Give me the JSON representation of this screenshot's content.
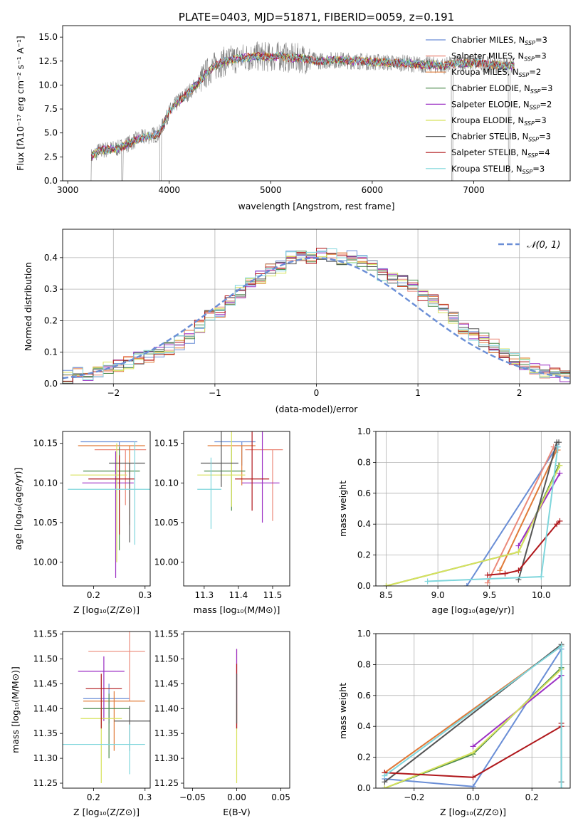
{
  "chart_data": [
    {
      "panel": "spectrum",
      "type": "line",
      "title": "PLATE=0403, MJD=51871, FIBERID=0059, z=0.191",
      "xlabel": "wavelength [Angstrom, rest frame]",
      "ylabel": "Flux [fλ10⁻¹⁷ erg cm⁻² s⁻¹ A⁻¹]",
      "xlim": [
        2950,
        7950
      ],
      "ylim": [
        0,
        16.2
      ],
      "xticks": [
        "3000",
        "4000",
        "5000",
        "6000",
        "7000"
      ],
      "yticks": [
        "0.0",
        "2.5",
        "5.0",
        "7.5",
        "10.0",
        "12.5",
        "15.0"
      ],
      "grid": false,
      "legend_position": "top-right",
      "data_envelope": {
        "x": [
          3230,
          3300,
          3400,
          3500,
          3600,
          3700,
          3800,
          3900,
          4000,
          4100,
          4200,
          4300,
          4400,
          4500,
          4600,
          4700,
          4800,
          4900,
          5000,
          5100,
          5200,
          5300,
          5400,
          5500,
          5600,
          5700,
          5800,
          5900,
          6000,
          6100,
          6200,
          6300,
          6400,
          6500,
          6600,
          6700,
          6800,
          6900,
          7000,
          7100,
          7200,
          7300,
          7400
        ],
        "y": [
          2.5,
          3.1,
          3.3,
          3.4,
          3.9,
          4.4,
          4.7,
          4.9,
          7.2,
          8.4,
          9.3,
          10.4,
          11.6,
          12.3,
          12.6,
          12.8,
          12.9,
          13.0,
          12.9,
          13.0,
          12.8,
          12.8,
          12.6,
          12.5,
          12.6,
          12.6,
          12.5,
          12.5,
          12.4,
          12.4,
          12.3,
          12.3,
          12.2,
          12.1,
          12.1,
          12.0,
          12.2,
          12.3,
          12.3,
          12.2,
          12.1,
          12.0,
          12.0
        ]
      },
      "series": [
        {
          "name": "Chabrier MILES, N",
          "sub": "SSP",
          "suffix": "=3",
          "color": "#6a8ed6"
        },
        {
          "name": "Salpeter MILES, N",
          "sub": "SSP",
          "suffix": "=3",
          "color": "#eb8a7a"
        },
        {
          "name": "Kroupa MILES, N",
          "sub": "SSP",
          "suffix": "=2",
          "color": "#e07b39"
        },
        {
          "name": "Chabrier ELODIE, N",
          "sub": "SSP",
          "suffix": "=3",
          "color": "#4e8c4e"
        },
        {
          "name": "Salpeter ELODIE, N",
          "sub": "SSP",
          "suffix": "=2",
          "color": "#9b2fc4"
        },
        {
          "name": "Kroupa ELODIE, N",
          "sub": "SSP",
          "suffix": "=3",
          "color": "#d7e25c"
        },
        {
          "name": "Chabrier STELIB, N",
          "sub": "SSP",
          "suffix": "=3",
          "color": "#555555"
        },
        {
          "name": "Salpeter STELIB, N",
          "sub": "SSP",
          "suffix": "=4",
          "color": "#b0181c"
        },
        {
          "name": "Kroupa STELIB, N",
          "sub": "SSP",
          "suffix": "=3",
          "color": "#7fd6dc"
        }
      ],
      "data_color": "#808080"
    },
    {
      "panel": "residuals",
      "type": "histogram",
      "xlabel": "(data-model)/error",
      "ylabel": "Normed distribution",
      "xlim": [
        -2.5,
        2.5
      ],
      "ylim": [
        0,
        0.49
      ],
      "xticks": [
        "−2",
        "−1",
        "0",
        "1",
        "2"
      ],
      "yticks": [
        "0.0",
        "0.1",
        "0.2",
        "0.3",
        "0.4"
      ],
      "grid": true,
      "legend": "𝒩(0, 1)",
      "legend_position": "top-right",
      "normal_curve_color": "#6a8ed6",
      "bin_edges": [
        -2.5,
        -2.4,
        -2.3,
        -2.2,
        -2.1,
        -2.0,
        -1.9,
        -1.8,
        -1.7,
        -1.6,
        -1.5,
        -1.4,
        -1.3,
        -1.2,
        -1.1,
        -1.0,
        -0.9,
        -0.8,
        -0.7,
        -0.6,
        -0.5,
        -0.4,
        -0.3,
        -0.2,
        -0.1,
        0.0,
        0.1,
        0.2,
        0.3,
        0.4,
        0.5,
        0.6,
        0.7,
        0.8,
        0.9,
        1.0,
        1.1,
        1.2,
        1.3,
        1.4,
        1.5,
        1.6,
        1.7,
        1.8,
        1.9,
        2.0,
        2.1,
        2.2,
        2.3,
        2.4,
        2.5
      ],
      "hist_centers_approx": [
        0.02,
        0.03,
        0.03,
        0.04,
        0.05,
        0.06,
        0.07,
        0.08,
        0.09,
        0.1,
        0.11,
        0.13,
        0.15,
        0.18,
        0.21,
        0.23,
        0.26,
        0.29,
        0.32,
        0.34,
        0.36,
        0.37,
        0.4,
        0.41,
        0.4,
        0.41,
        0.41,
        0.4,
        0.4,
        0.39,
        0.37,
        0.35,
        0.34,
        0.33,
        0.31,
        0.28,
        0.26,
        0.24,
        0.21,
        0.18,
        0.16,
        0.14,
        0.12,
        0.1,
        0.08,
        0.06,
        0.05,
        0.04,
        0.03,
        0.02
      ],
      "hist_colors": [
        "#6a8ed6",
        "#eb8a7a",
        "#e07b39",
        "#4e8c4e",
        "#9b2fc4",
        "#d7e25c",
        "#555555",
        "#b0181c",
        "#7fd6dc"
      ]
    },
    {
      "panel": "age-vs-Z",
      "type": "errorbar",
      "xlabel": "Z [log₁₀(Z/Z⊙)]",
      "ylabel": "age  [log₁₀(age/yr)]",
      "xlim": [
        0.14,
        0.31
      ],
      "ylim": [
        9.97,
        10.165
      ],
      "xticks": [
        "0.2",
        "0.3"
      ],
      "yticks": [
        "10.00",
        "10.05",
        "10.10",
        "10.15"
      ],
      "points": [
        {
          "x": 0.25,
          "y": 10.152,
          "xerr": [
            0.075,
            0.035
          ],
          "yerr": [
            0.06,
            0.0
          ],
          "color": "#6a8ed6"
        },
        {
          "x": 0.262,
          "y": 10.142,
          "xerr": [
            0.06,
            0.04
          ],
          "yerr": [
            0.07,
            0.0
          ],
          "color": "#eb8a7a"
        },
        {
          "x": 0.27,
          "y": 10.147,
          "xerr": [
            0.1,
            0.03
          ],
          "yerr": [
            0.1,
            0.0
          ],
          "color": "#e07b39"
        },
        {
          "x": 0.25,
          "y": 10.115,
          "xerr": [
            0.07,
            0.04
          ],
          "yerr": [
            0.1,
            0.03
          ],
          "color": "#4e8c4e"
        },
        {
          "x": 0.243,
          "y": 10.1,
          "xerr": [
            0.065,
            0.035
          ],
          "yerr": [
            0.12,
            0.04
          ],
          "color": "#9b2fc4"
        },
        {
          "x": 0.245,
          "y": 10.11,
          "xerr": [
            0.09,
            0.02
          ],
          "yerr": [
            0.11,
            0.04
          ],
          "color": "#d7e25c"
        },
        {
          "x": 0.27,
          "y": 10.125,
          "xerr": [
            0.04,
            0.03
          ],
          "yerr": [
            0.1,
            0.0
          ],
          "color": "#555555"
        },
        {
          "x": 0.25,
          "y": 10.105,
          "xerr": [
            0.06,
            0.03
          ],
          "yerr": [
            0.07,
            0.03
          ],
          "color": "#b0181c"
        },
        {
          "x": 0.28,
          "y": 10.092,
          "xerr": [
            0.13,
            0.03
          ],
          "yerr": [
            0.07,
            0.06
          ],
          "color": "#7fd6dc"
        }
      ]
    },
    {
      "panel": "age-vs-mass",
      "type": "errorbar",
      "xlabel": "mass [log₁₀(M/M⊙)]",
      "xlim": [
        11.24,
        11.55
      ],
      "ylim": [
        9.97,
        10.165
      ],
      "xticks": [
        "11.3",
        "11.4",
        "11.5"
      ],
      "yticks": [
        "10.00",
        "10.05",
        "10.10",
        "10.15"
      ],
      "points": [
        {
          "x": 11.41,
          "y": 10.152,
          "xerr": [
            0.08,
            0.04
          ],
          "yerr": [
            0.03,
            0.0
          ],
          "color": "#6a8ed6"
        },
        {
          "x": 11.5,
          "y": 10.142,
          "xerr": [
            0.08,
            0.03
          ],
          "yerr": [
            0.09,
            0.0
          ],
          "color": "#eb8a7a"
        },
        {
          "x": 11.41,
          "y": 10.147,
          "xerr": [
            0.1,
            0.04
          ],
          "yerr": [
            0.05,
            0.0
          ],
          "color": "#e07b39"
        },
        {
          "x": 11.38,
          "y": 10.115,
          "xerr": [
            0.08,
            0.04
          ],
          "yerr": [
            0.05,
            0.03
          ],
          "color": "#4e8c4e"
        },
        {
          "x": 11.47,
          "y": 10.1,
          "xerr": [
            0.06,
            0.05
          ],
          "yerr": [
            0.05,
            0.12
          ],
          "color": "#9b2fc4"
        },
        {
          "x": 11.38,
          "y": 10.11,
          "xerr": [
            0.1,
            0.04
          ],
          "yerr": [
            0.04,
            0.12
          ],
          "color": "#d7e25c"
        },
        {
          "x": 11.35,
          "y": 10.125,
          "xerr": [
            0.06,
            0.05
          ],
          "yerr": [
            0.03,
            0.06
          ],
          "color": "#555555"
        },
        {
          "x": 11.44,
          "y": 10.105,
          "xerr": [
            0.05,
            0.05
          ],
          "yerr": [
            0.04,
            0.06
          ],
          "color": "#b0181c"
        },
        {
          "x": 11.32,
          "y": 10.092,
          "xerr": [
            0.04,
            0.03
          ],
          "yerr": [
            0.05,
            0.04
          ],
          "color": "#7fd6dc"
        }
      ]
    },
    {
      "panel": "weight-vs-age",
      "type": "line",
      "xlabel": "age  [log₁₀(age/yr)]",
      "ylabel": "mass weight",
      "xlim": [
        8.4,
        10.28
      ],
      "ylim": [
        0,
        1.0
      ],
      "xticks": [
        "8.5",
        "9.0",
        "9.5",
        "10.0"
      ],
      "yticks": [
        "0.0",
        "0.2",
        "0.4",
        "0.6",
        "0.8",
        "1.0"
      ],
      "grid": true,
      "series": [
        {
          "color": "#6a8ed6",
          "x": [
            9.28,
            10.15,
            10.16
          ],
          "y": [
            0.0,
            0.9,
            0.9
          ]
        },
        {
          "color": "#eb8a7a",
          "x": [
            9.48,
            10.12
          ],
          "y": [
            0.02,
            0.9
          ]
        },
        {
          "color": "#e07b39",
          "x": [
            9.6,
            10.15,
            10.16
          ],
          "y": [
            0.1,
            0.88,
            0.88
          ]
        },
        {
          "color": "#4e8c4e",
          "x": [
            8.5,
            9.78,
            10.17
          ],
          "y": [
            0.0,
            0.22,
            0.78
          ]
        },
        {
          "color": "#9b2fc4",
          "x": [
            9.78,
            10.18
          ],
          "y": [
            0.26,
            0.73
          ]
        },
        {
          "color": "#d7e25c",
          "x": [
            8.5,
            9.78,
            10.18
          ],
          "y": [
            0.0,
            0.22,
            0.78
          ]
        },
        {
          "color": "#555555",
          "x": [
            9.78,
            10.15,
            10.17
          ],
          "y": [
            0.04,
            0.93,
            0.93
          ]
        },
        {
          "color": "#b0181c",
          "x": [
            9.48,
            9.65,
            9.78,
            10.15,
            10.18
          ],
          "y": [
            0.07,
            0.08,
            0.1,
            0.4,
            0.42
          ]
        },
        {
          "color": "#7fd6dc",
          "x": [
            8.9,
            10.0,
            10.16
          ],
          "y": [
            0.03,
            0.06,
            0.9
          ]
        }
      ]
    },
    {
      "panel": "mass-vs-Z",
      "type": "errorbar",
      "xlabel": "Z [log₁₀(Z/Z⊙)]",
      "ylabel": "mass [log₁₀(M/M⊙)]",
      "xlim": [
        0.14,
        0.31
      ],
      "ylim": [
        11.24,
        11.555
      ],
      "xticks": [
        "0.2",
        "0.3"
      ],
      "yticks": [
        "11.25",
        "11.30",
        "11.35",
        "11.40",
        "11.45",
        "11.50",
        "11.55"
      ],
      "points": [
        {
          "x": 0.23,
          "y": 11.42,
          "xerr": [
            0.05,
            0.04
          ],
          "yerr": [
            0.05,
            0.03
          ],
          "color": "#6a8ed6"
        },
        {
          "x": 0.27,
          "y": 11.515,
          "xerr": [
            0.08,
            0.03
          ],
          "yerr": [
            0.1,
            0.04
          ],
          "color": "#eb8a7a"
        },
        {
          "x": 0.24,
          "y": 11.415,
          "xerr": [
            0.06,
            0.06
          ],
          "yerr": [
            0.1,
            0.02
          ],
          "color": "#e07b39"
        },
        {
          "x": 0.23,
          "y": 11.4,
          "xerr": [
            0.05,
            0.04
          ],
          "yerr": [
            0.1,
            0.03
          ],
          "color": "#4e8c4e"
        },
        {
          "x": 0.22,
          "y": 11.475,
          "xerr": [
            0.05,
            0.04
          ],
          "yerr": [
            0.1,
            0.03
          ],
          "color": "#9b2fc4"
        },
        {
          "x": 0.215,
          "y": 11.38,
          "xerr": [
            0.04,
            0.04
          ],
          "yerr": [
            0.13,
            0.02
          ],
          "color": "#d7e25c"
        },
        {
          "x": 0.27,
          "y": 11.375,
          "xerr": [
            0.03,
            0.04
          ],
          "yerr": [
            0.06,
            0.03
          ],
          "color": "#555555"
        },
        {
          "x": 0.215,
          "y": 11.44,
          "xerr": [
            0.03,
            0.04
          ],
          "yerr": [
            0.08,
            0.03
          ],
          "color": "#b0181c"
        },
        {
          "x": 0.27,
          "y": 11.328,
          "xerr": [
            0.13,
            0.03
          ],
          "yerr": [
            0.06,
            0.04
          ],
          "color": "#7fd6dc"
        }
      ]
    },
    {
      "panel": "mass-vs-EBV",
      "type": "errorbar",
      "xlabel": "E(B-V)",
      "xlim": [
        -0.06,
        0.06
      ],
      "ylim": [
        11.24,
        11.555
      ],
      "xticks": [
        "−0.05",
        "0.00",
        "0.05"
      ],
      "yticks": [
        "11.25",
        "11.30",
        "11.35",
        "11.40",
        "11.45",
        "11.50",
        "11.55"
      ],
      "points": [
        {
          "x": 0.0,
          "y": 11.44,
          "yerr": [
            0.08,
            0.08
          ],
          "color": "#eb8a7a"
        },
        {
          "x": 0.0,
          "y": 11.44,
          "yerr": [
            0.08,
            0.08
          ],
          "color": "#9b2fc4"
        },
        {
          "x": 0.0,
          "y": 11.36,
          "yerr": [
            0.11,
            0.05
          ],
          "color": "#d7e25c"
        },
        {
          "x": 0.0,
          "y": 11.42,
          "yerr": [
            0.06,
            0.07
          ],
          "color": "#b0181c"
        },
        {
          "x": 0.0,
          "y": 11.42,
          "yerr": [
            0.05,
            0.05
          ],
          "color": "#555555"
        }
      ]
    },
    {
      "panel": "weight-vs-Z",
      "type": "line",
      "xlabel": "Z [log₁₀(Z/Z⊙)]",
      "ylabel": "mass weight",
      "xlim": [
        -0.33,
        0.33
      ],
      "ylim": [
        0,
        1.0
      ],
      "xticks": [
        "−0.2",
        "0.0",
        "0.2"
      ],
      "yticks": [
        "0.0",
        "0.2",
        "0.4",
        "0.6",
        "0.8",
        "1.0"
      ],
      "grid": true,
      "series": [
        {
          "color": "#6a8ed6",
          "x": [
            -0.3,
            0.0,
            0.3
          ],
          "y": [
            0.06,
            0.01,
            0.9
          ]
        },
        {
          "color": "#eb8a7a",
          "x": [
            -0.3,
            0.3
          ],
          "y": [
            0.1,
            0.92
          ]
        },
        {
          "color": "#e07b39",
          "x": [
            -0.3,
            0.3
          ],
          "y": [
            0.1,
            0.92
          ]
        },
        {
          "color": "#4e8c4e",
          "x": [
            -0.3,
            0.0,
            0.3
          ],
          "y": [
            0.0,
            0.22,
            0.78
          ]
        },
        {
          "color": "#9b2fc4",
          "x": [
            0.0,
            0.3
          ],
          "y": [
            0.27,
            0.73
          ]
        },
        {
          "color": "#d7e25c",
          "x": [
            -0.3,
            0.0,
            0.3
          ],
          "y": [
            0.0,
            0.23,
            0.77
          ]
        },
        {
          "color": "#555555",
          "x": [
            -0.3,
            0.3,
            0.3
          ],
          "y": [
            0.04,
            0.93,
            0.04
          ]
        },
        {
          "color": "#b0181c",
          "x": [
            -0.3,
            0.0,
            0.3,
            0.3
          ],
          "y": [
            0.1,
            0.07,
            0.4,
            0.42
          ]
        },
        {
          "color": "#7fd6dc",
          "x": [
            -0.3,
            0.3,
            0.3
          ],
          "y": [
            0.08,
            0.92,
            0.0
          ]
        }
      ]
    }
  ]
}
